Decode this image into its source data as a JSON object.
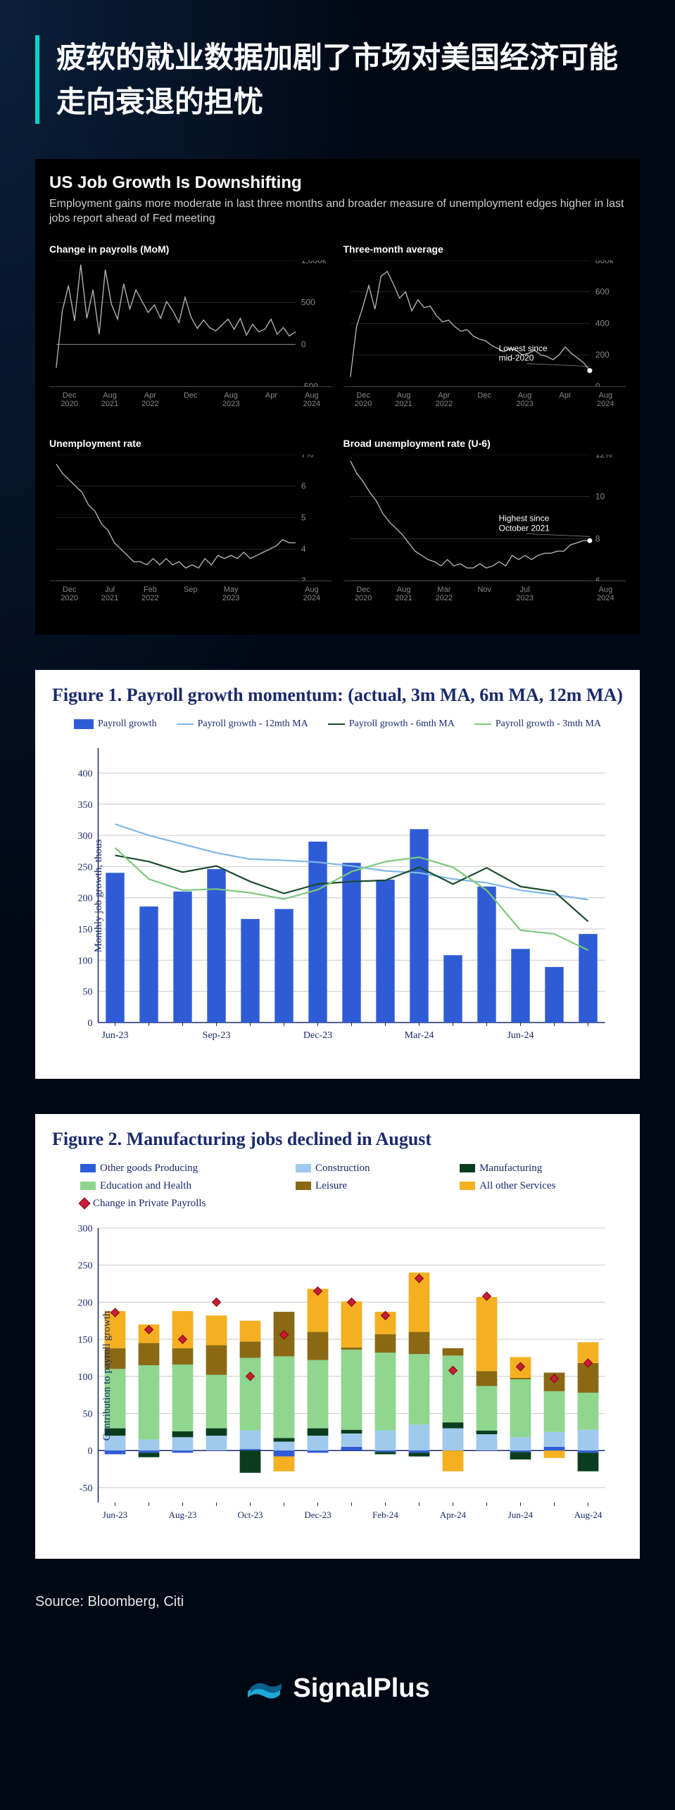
{
  "header": {
    "title": "疲软的就业数据加剧了市场对美国经济可能走向衰退的担忧"
  },
  "bloomberg": {
    "title": "US Job Growth Is Downshifting",
    "subtitle": "Employment gains more moderate in last three months and broader measure of unemployment edges higher in last jobs report ahead of Fed meeting",
    "line_color": "#b0b0b0",
    "grid_color": "#444444",
    "tick_color": "#888888",
    "charts": [
      {
        "title": "Change in payrolls (MoM)",
        "yticks": [
          "1,000k",
          "500",
          "0",
          "-500"
        ],
        "ylim": [
          -500,
          1000
        ],
        "zero_at": 0,
        "xticks": [
          "Dec\n2020",
          "Aug\n2021",
          "Apr\n2022",
          "Dec",
          "Aug\n2023",
          "Apr",
          "Aug\n2024"
        ],
        "data": [
          -280,
          400,
          700,
          280,
          950,
          310,
          650,
          120,
          890,
          480,
          300,
          720,
          420,
          650,
          510,
          380,
          470,
          310,
          510,
          400,
          260,
          560,
          320,
          190,
          290,
          200,
          160,
          230,
          300,
          180,
          310,
          110,
          240,
          150,
          180,
          300,
          120,
          200,
          100,
          150
        ]
      },
      {
        "title": "Three-month average",
        "annotation": "Lowest since mid-2020",
        "yticks": [
          "800k",
          "600",
          "400",
          "200",
          "0"
        ],
        "ylim": [
          0,
          800
        ],
        "xticks": [
          "Dec\n2020",
          "Aug\n2021",
          "Apr\n2022",
          "Dec",
          "Aug\n2023",
          "Apr",
          "Aug\n2024"
        ],
        "data": [
          60,
          380,
          500,
          640,
          490,
          700,
          730,
          650,
          560,
          600,
          480,
          550,
          500,
          510,
          450,
          410,
          420,
          380,
          350,
          360,
          320,
          300,
          290,
          260,
          240,
          220,
          240,
          230,
          200,
          210,
          230,
          200,
          190,
          170,
          200,
          250,
          210,
          180,
          150,
          100
        ],
        "marker_last": true
      },
      {
        "title": "Unemployment rate",
        "yticks": [
          "7%",
          "6",
          "5",
          "4",
          "3"
        ],
        "ylim": [
          3,
          7
        ],
        "xticks": [
          "Dec\n2020",
          "Jul\n2021",
          "Feb\n2022",
          "Sep",
          "May\n2023",
          "",
          "Aug\n2024"
        ],
        "data": [
          6.7,
          6.4,
          6.2,
          6.0,
          5.8,
          5.4,
          5.2,
          4.8,
          4.6,
          4.2,
          4.0,
          3.8,
          3.6,
          3.6,
          3.5,
          3.7,
          3.5,
          3.7,
          3.5,
          3.6,
          3.4,
          3.5,
          3.4,
          3.7,
          3.5,
          3.8,
          3.7,
          3.8,
          3.7,
          3.9,
          3.7,
          3.8,
          3.9,
          4.0,
          4.1,
          4.3,
          4.2,
          4.2
        ]
      },
      {
        "title": "Broad unemployment rate (U-6)",
        "annotation": "Highest since October 2021",
        "yticks": [
          "12%",
          "10",
          "8",
          "6"
        ],
        "ylim": [
          6,
          12
        ],
        "xticks": [
          "Dec\n2020",
          "Aug\n2021",
          "Mar\n2022",
          "Nov",
          "Jul\n2023",
          "",
          "Aug\n2024"
        ],
        "data": [
          11.7,
          11.1,
          10.7,
          10.2,
          9.8,
          9.2,
          8.8,
          8.5,
          8.2,
          7.8,
          7.4,
          7.2,
          7.0,
          6.9,
          6.7,
          7.0,
          6.7,
          6.8,
          6.6,
          6.6,
          6.8,
          6.6,
          6.7,
          6.9,
          6.7,
          7.2,
          7.0,
          7.2,
          7.0,
          7.2,
          7.3,
          7.3,
          7.4,
          7.4,
          7.7,
          7.8,
          7.9,
          7.9
        ],
        "marker_last": true
      }
    ]
  },
  "figure1": {
    "title": "Figure 1. Payroll growth momentum: (actual, 3m MA, 6m MA, 12m MA)",
    "ylabel": "Monthly job growth, thous",
    "ylim": [
      0,
      440
    ],
    "ytick_step": 50,
    "yticks": [
      0,
      50,
      100,
      150,
      200,
      250,
      300,
      350,
      400
    ],
    "grid_color": "#cccccc",
    "axis_color": "#1a2a6c",
    "x_categories": [
      "Jun-23",
      "",
      "",
      "Sep-23",
      "",
      "",
      "Dec-23",
      "",
      "",
      "Mar-24",
      "",
      "",
      "Jun-24",
      "",
      ""
    ],
    "xlabels_shown": [
      "Jun-23",
      "Sep-23",
      "Dec-23",
      "Mar-24",
      "Jun-24"
    ],
    "series": {
      "bars": {
        "label": "Payroll growth",
        "color": "#2f5cd6",
        "values": [
          240,
          186,
          210,
          246,
          166,
          182,
          290,
          256,
          229,
          310,
          108,
          218,
          118,
          89,
          142
        ]
      },
      "ma12": {
        "label": "Payroll growth - 12mth MA",
        "color": "#7fb8e6",
        "values": [
          318,
          300,
          286,
          272,
          262,
          260,
          257,
          251,
          243,
          240,
          230,
          224,
          212,
          205,
          197
        ]
      },
      "ma6": {
        "label": "Payroll growth - 6mth MA",
        "color": "#1a4a2e",
        "values": [
          268,
          258,
          241,
          251,
          226,
          207,
          222,
          226,
          228,
          249,
          222,
          248,
          218,
          210,
          162
        ]
      },
      "ma3": {
        "label": "Payroll growth - 3mth MA",
        "color": "#7cc97c",
        "values": [
          280,
          230,
          212,
          214,
          208,
          198,
          213,
          242,
          258,
          265,
          249,
          212,
          148,
          142,
          116
        ]
      }
    }
  },
  "figure2": {
    "title": "Figure 2. Manufacturing jobs declined in August",
    "ylabel": "Contribution to payroll growth",
    "ylim": [
      -70,
      300
    ],
    "yticks": [
      -50,
      0,
      50,
      100,
      150,
      200,
      250,
      300
    ],
    "grid_color": "#cccccc",
    "axis_color": "#1a2a6c",
    "x_categories": [
      "Jun-23",
      "",
      "Aug-23",
      "",
      "Oct-23",
      "",
      "Dec-23",
      "",
      "Feb-24",
      "",
      "Apr-24",
      "",
      "Jun-24",
      "",
      "Aug-24"
    ],
    "xlabels_shown": [
      "Jun-23",
      "Aug-23",
      "Oct-23",
      "Dec-23",
      "Feb-24",
      "Apr-24",
      "Jun-24",
      "Aug-24"
    ],
    "legend": [
      {
        "label": "Other goods Producing",
        "color": "#2f5cd6",
        "type": "box"
      },
      {
        "label": "Construction",
        "color": "#9fc9ed",
        "type": "box"
      },
      {
        "label": "Manufacturing",
        "color": "#0a3d1e",
        "type": "box"
      },
      {
        "label": "Education and Health",
        "color": "#8fd68f",
        "type": "box"
      },
      {
        "label": "Leisure",
        "color": "#8b6914",
        "type": "box"
      },
      {
        "label": "All other Services",
        "color": "#f4b020",
        "type": "box"
      },
      {
        "label": "Change in Private Payrolls",
        "color": "#c41e3a",
        "type": "diamond"
      }
    ],
    "stacks": {
      "other_goods": [
        -5,
        -3,
        -3,
        0,
        2,
        -8,
        -3,
        5,
        -2,
        -3,
        0,
        0,
        -2,
        5,
        -3
      ],
      "construction": [
        20,
        15,
        18,
        20,
        25,
        12,
        20,
        18,
        27,
        35,
        30,
        22,
        18,
        20,
        28
      ],
      "manufacturing": [
        10,
        -6,
        8,
        10,
        -30,
        5,
        10,
        5,
        -3,
        -5,
        8,
        5,
        -10,
        0,
        -25
      ],
      "edu_health": [
        80,
        100,
        90,
        72,
        98,
        110,
        92,
        108,
        105,
        95,
        90,
        60,
        78,
        55,
        50
      ],
      "leisure": [
        28,
        30,
        22,
        40,
        22,
        60,
        38,
        3,
        25,
        30,
        10,
        20,
        2,
        25,
        40
      ],
      "other_svc": [
        50,
        25,
        50,
        40,
        28,
        -20,
        58,
        62,
        30,
        80,
        -28,
        100,
        28,
        -10,
        28
      ]
    },
    "private_payrolls": [
      186,
      163,
      150,
      200,
      100,
      156,
      215,
      200,
      182,
      232,
      108,
      208,
      113,
      97,
      118
    ]
  },
  "source": "Source: Bloomberg, Citi",
  "brand": "SignalPlus"
}
